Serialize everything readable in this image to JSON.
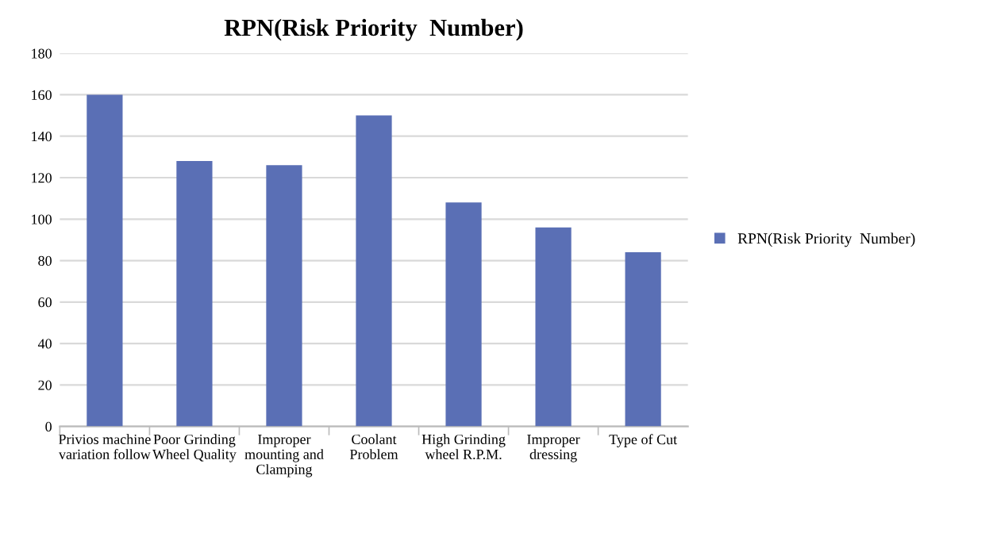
{
  "chart_data": {
    "type": "bar",
    "title": "RPN(Risk Priority  Number)",
    "categories": [
      "Privios machine\nvariation follow",
      "Poor Grinding\nWheel Quality",
      "Improper\nmounting and\nClamping",
      "Coolant\nProblem",
      "High Grinding\nwheel R.P.M.",
      "Improper\ndressing",
      "Type of Cut"
    ],
    "series": [
      {
        "name": "RPN(Risk Priority  Number)",
        "color": "#5a6fb5",
        "values": [
          160,
          128,
          126,
          150,
          108,
          96,
          84
        ]
      }
    ],
    "ylim": [
      0,
      180
    ],
    "yticks": [
      0,
      20,
      40,
      60,
      80,
      100,
      120,
      140,
      160,
      180
    ],
    "grid": "y",
    "legend": "right"
  }
}
